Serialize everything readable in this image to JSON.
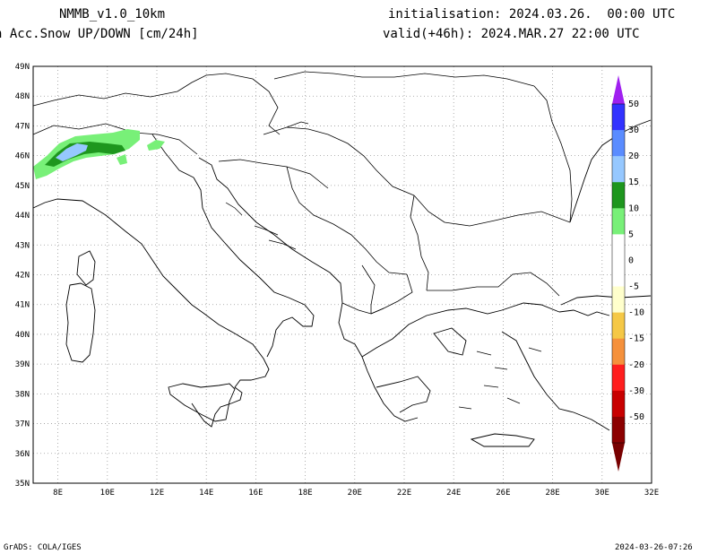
{
  "header": {
    "model": "NMMB_v1.0_10km",
    "variable": "n Acc.Snow UP/DOWN [cm/24h]",
    "init": "initialisation: 2024.03.26.  00:00 UTC",
    "valid": "valid(+46h): 2024.MAR.27 22:00 UTC"
  },
  "axes": {
    "lat_labels": [
      "49N",
      "48N",
      "47N",
      "46N",
      "45N",
      "44N",
      "43N",
      "42N",
      "41N",
      "40N",
      "39N",
      "38N",
      "37N",
      "36N",
      "35N"
    ],
    "lat_values": [
      49,
      48,
      47,
      46,
      45,
      44,
      43,
      42,
      41,
      40,
      39,
      38,
      37,
      36,
      35
    ],
    "lon_labels": [
      "8E",
      "10E",
      "12E",
      "14E",
      "16E",
      "18E",
      "20E",
      "22E",
      "24E",
      "26E",
      "28E",
      "30E",
      "32E"
    ],
    "lon_values": [
      8,
      10,
      12,
      14,
      16,
      18,
      20,
      22,
      24,
      26,
      28,
      30,
      32
    ],
    "lon_range": [
      7,
      32
    ],
    "lat_range": [
      35,
      49
    ]
  },
  "legend": {
    "labels": [
      "50",
      "30",
      "20",
      "15",
      "10",
      "5",
      "0",
      "-5",
      "-10",
      "-15",
      "-20",
      "-30",
      "-50"
    ],
    "colors": [
      "#3232ff",
      "#5a8cff",
      "#96c8ff",
      "#1e961e",
      "#78f078",
      "#ffffff",
      "#ffffff",
      "#ffffcc",
      "#f5c846",
      "#f5913c",
      "#ff1e1e",
      "#c80000",
      "#8c0000"
    ],
    "top_cap": "#a020f0",
    "bottom_cap": "#780000"
  },
  "footer": {
    "left": "GrADS: COLA/IGES",
    "right": "2024-03-26-07:26"
  }
}
